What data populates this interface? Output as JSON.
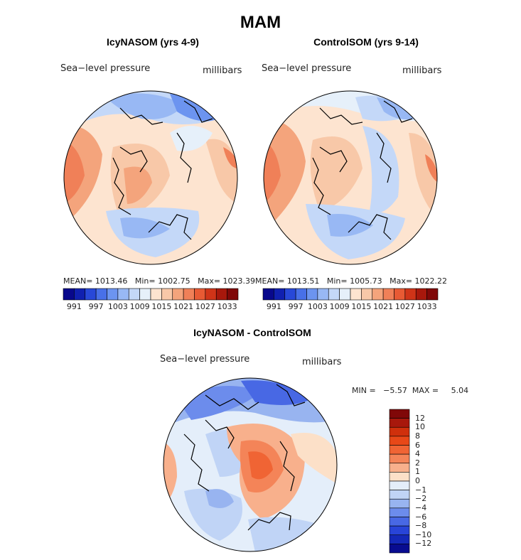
{
  "figure": {
    "title": "MAM"
  },
  "panels": [
    {
      "title": "IcyNASOM (yrs 4-9)",
      "variable_label": "Sea−level pressure",
      "units_label": "millibars",
      "stats_text": "MEAN= 1013.46   Min= 1002.75   Max= 1023.39"
    },
    {
      "title": "ControlSOM (yrs 9-14)",
      "variable_label": "Sea−level pressure",
      "units_label": "millibars",
      "stats_text": "MEAN= 1013.51   Min= 1005.73   Max= 1022.22"
    },
    {
      "title": "IcyNASOM - ControlSOM",
      "variable_label": "Sea−level pressure",
      "units_label": "millibars",
      "stats_text": "MIN =   −5.57  MAX =     5.04"
    }
  ],
  "colorbar_pressure": {
    "colors": [
      "#08088c",
      "#1020b0",
      "#2848d8",
      "#4870e8",
      "#6c94f0",
      "#98b8f4",
      "#c4d8f8",
      "#e6f0fa",
      "#fde4d0",
      "#f8c8a8",
      "#f4a47c",
      "#f08058",
      "#e85a34",
      "#d03418",
      "#a8180c",
      "#800808"
    ],
    "labels": [
      "991",
      "997",
      "1003",
      "1009",
      "1015",
      "1021",
      "1027",
      "1033"
    ]
  },
  "colorbar_diff": {
    "colors": [
      "#800808",
      "#a8180c",
      "#d0300c",
      "#e84818",
      "#f06434",
      "#f48458",
      "#f8b08c",
      "#fce0c8",
      "#e4eefa",
      "#c0d4f6",
      "#98b4f0",
      "#6c8cec",
      "#4868e4",
      "#2844d8",
      "#1428b8",
      "#080c90"
    ],
    "labels": [
      "12",
      "10",
      "8",
      "6",
      "4",
      "2",
      "1",
      "0",
      "−1",
      "−2",
      "−4",
      "−6",
      "−8",
      "−10",
      "−12"
    ]
  }
}
